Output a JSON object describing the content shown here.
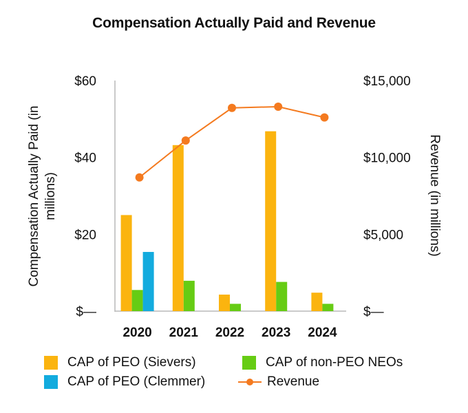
{
  "chart_data": {
    "type": "bar",
    "title": "Compensation Actually Paid and Revenue",
    "categories": [
      "2020",
      "2021",
      "2022",
      "2023",
      "2024"
    ],
    "ylabel": "Compensation Actually Paid (in millions)",
    "y2label": "Revenue (in millions)",
    "ylim": [
      0,
      60
    ],
    "y2lim": [
      0,
      15000
    ],
    "yticks": [
      "$—",
      "$20",
      "$40",
      "$60"
    ],
    "yticks_values": [
      0,
      20,
      40,
      60
    ],
    "y2ticks": [
      "$—",
      "$5,000",
      "$10,000",
      "$15,000"
    ],
    "y2ticks_values": [
      0,
      5000,
      10000,
      15000
    ],
    "grid": false,
    "legend_position": "bottom",
    "series": [
      {
        "name": "CAP of PEO (Sievers)",
        "kind": "bar",
        "axis": "left",
        "color": "#FBB40F",
        "values": [
          25,
          43.2,
          4.3,
          46.8,
          4.8
        ]
      },
      {
        "name": "CAP of non-PEO NEOs",
        "kind": "bar",
        "axis": "left",
        "color": "#66CC14",
        "values": [
          5.5,
          7.9,
          1.9,
          7.6,
          1.9
        ]
      },
      {
        "name": "CAP of PEO (Clemmer)",
        "kind": "bar",
        "axis": "left",
        "color": "#13ABDE",
        "values": [
          15.4,
          null,
          null,
          null,
          null
        ]
      },
      {
        "name": "Revenue",
        "kind": "line",
        "axis": "right",
        "color": "#F47A1F",
        "values": [
          8700,
          11100,
          13220,
          13300,
          12600
        ]
      }
    ]
  }
}
